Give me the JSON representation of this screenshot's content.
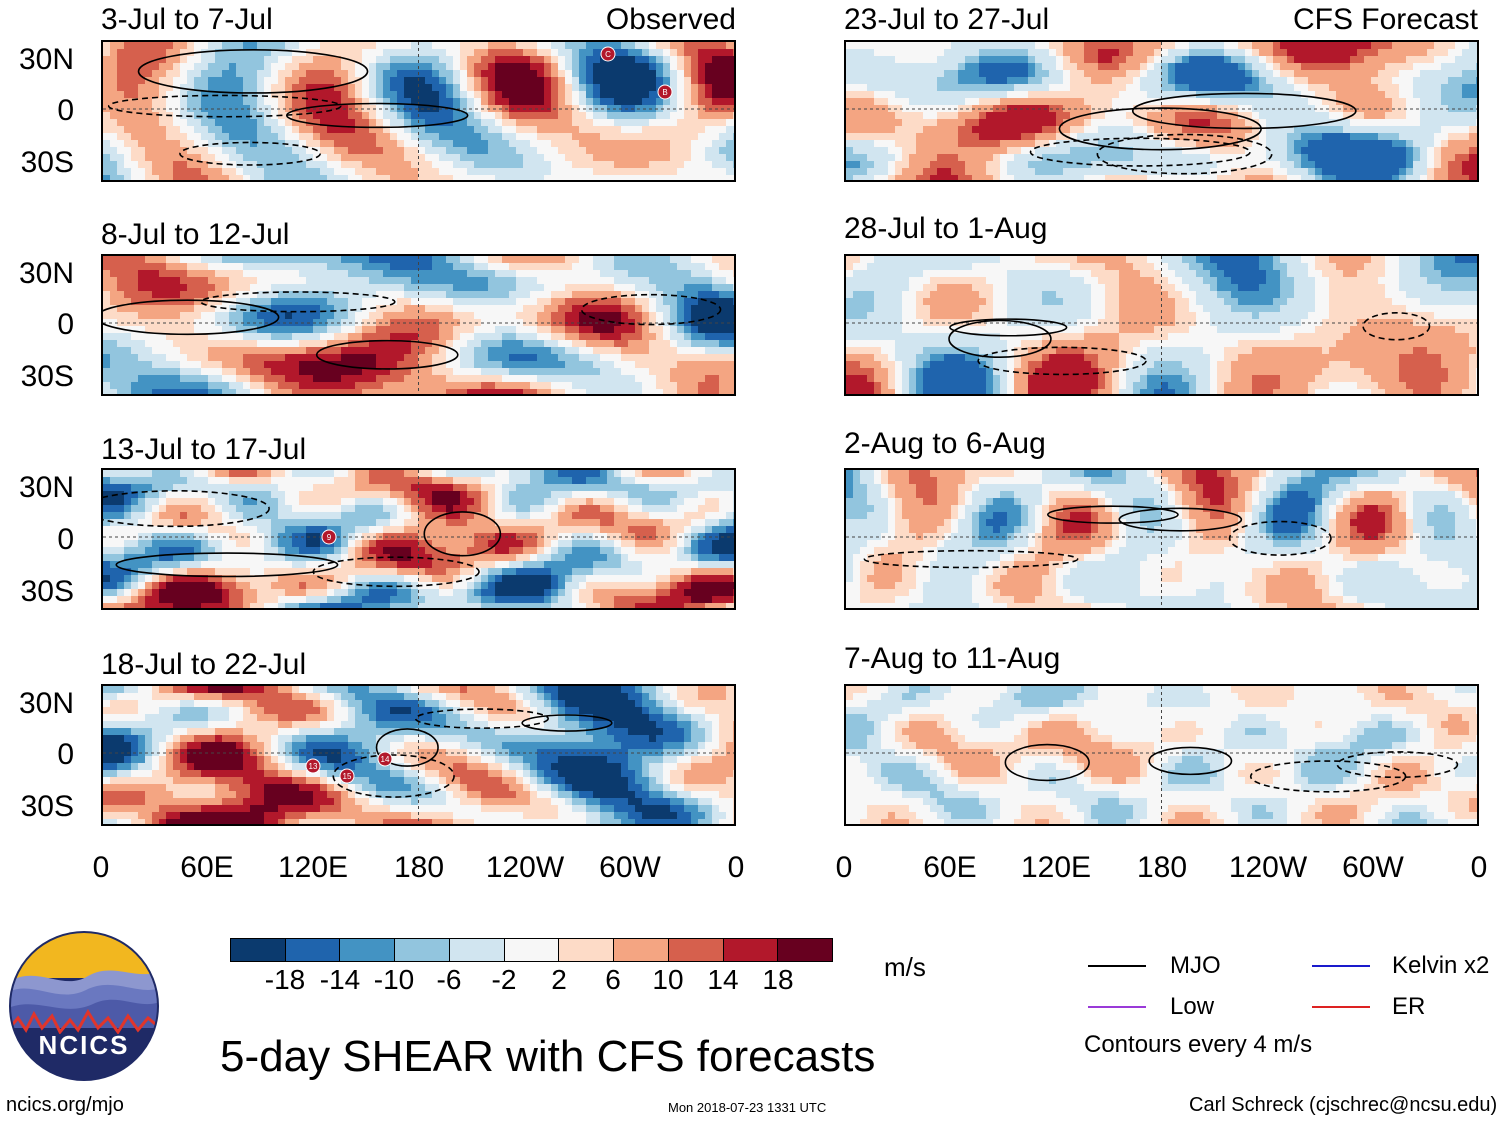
{
  "figure": {
    "main_title": "5-day SHEAR with CFS forecasts",
    "site": "ncics.org/mjo",
    "timestamp": "Mon 2018-07-23 1331 UTC",
    "author": "Carl Schreck (cjschrec@ncsu.edu)",
    "logo_text": "NCICS"
  },
  "tags": {
    "observed": "Observed",
    "forecast": "CFS Forecast"
  },
  "axes": {
    "y_labels": [
      "30N",
      "0",
      "30S"
    ],
    "x_labels": [
      "0",
      "60E",
      "120E",
      "180",
      "120W",
      "60W",
      "0"
    ]
  },
  "panels": {
    "observed": [
      {
        "title": "3-Jul to 7-Jul",
        "storms": [
          "C",
          "B"
        ]
      },
      {
        "title": "8-Jul to 12-Jul",
        "storms": []
      },
      {
        "title": "13-Jul to 17-Jul",
        "storms": [
          "9"
        ]
      },
      {
        "title": "18-Jul to 22-Jul",
        "storms": [
          "13",
          "14",
          "15"
        ]
      }
    ],
    "forecast": [
      {
        "title": "23-Jul to 27-Jul"
      },
      {
        "title": "28-Jul to 1-Aug"
      },
      {
        "title": "2-Aug to 6-Aug"
      },
      {
        "title": "7-Aug to 11-Aug"
      }
    ]
  },
  "colorbar": {
    "units": "m/s",
    "labels": [
      "-18",
      "-14",
      "-10",
      "-6",
      "-2",
      "2",
      "6",
      "10",
      "14",
      "18"
    ],
    "colors": [
      "#0b3a6e",
      "#1f64ad",
      "#4393c3",
      "#92c5de",
      "#d1e5f0",
      "#f7f7f7",
      "#fddbc7",
      "#f4a582",
      "#d6604d",
      "#b2182b",
      "#67001f"
    ]
  },
  "legend": {
    "items": [
      {
        "label": "MJO",
        "color": "#000000"
      },
      {
        "label": "Kelvin x2",
        "color": "#1a1acc"
      },
      {
        "label": "Low",
        "color": "#9a3ad8"
      },
      {
        "label": "ER",
        "color": "#dd2222"
      }
    ],
    "note": "Contours every 4 m/s"
  }
}
